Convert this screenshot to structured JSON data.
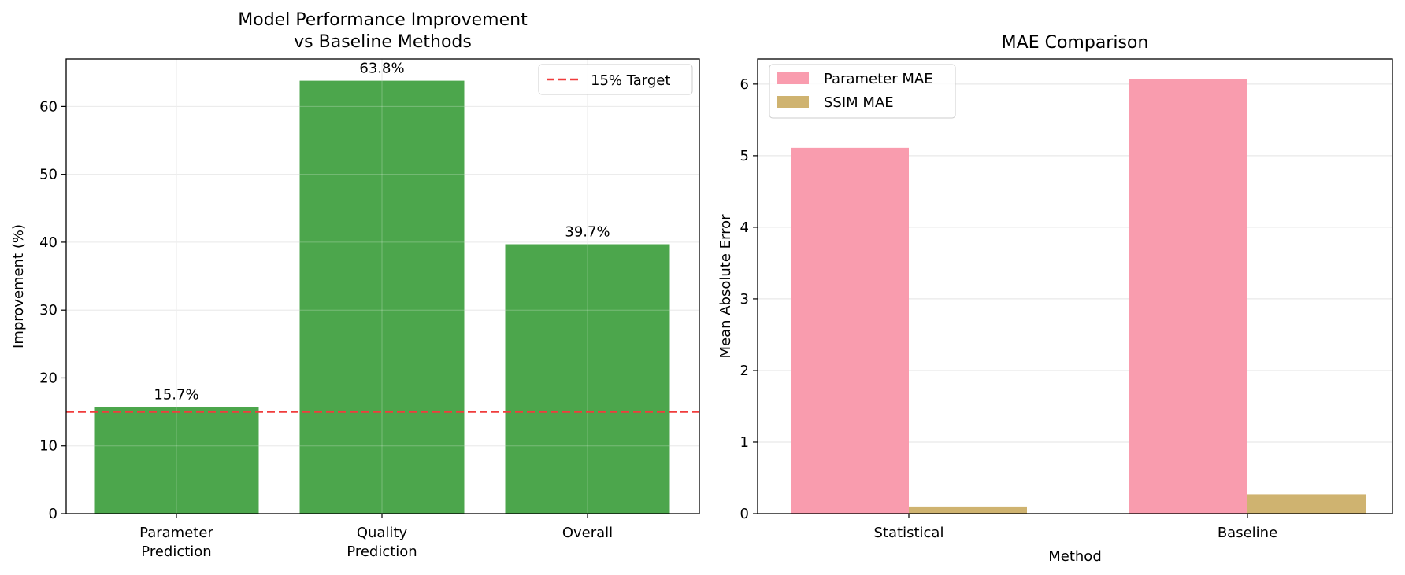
{
  "chart_data": [
    {
      "type": "bar",
      "title_lines": [
        "Model Performance Improvement",
        "vs Baseline Methods"
      ],
      "xlabel": "",
      "ylabel": "Improvement (%)",
      "categories": [
        {
          "lines": [
            "Parameter",
            "Prediction"
          ]
        },
        {
          "lines": [
            "Quality",
            "Prediction"
          ]
        },
        {
          "lines": [
            "Overall"
          ]
        }
      ],
      "values": [
        15.7,
        63.8,
        39.7
      ],
      "data_labels": [
        "15.7%",
        "63.8%",
        "39.7%"
      ],
      "bar_color": "#4ca64c",
      "ylim": [
        0,
        67
      ],
      "yticks": [
        0,
        10,
        20,
        30,
        40,
        50,
        60
      ],
      "target_line": {
        "value": 15,
        "label": "15% Target",
        "color": "#f03c3c"
      },
      "legend_position": "top-right",
      "grid": true
    },
    {
      "type": "bar",
      "title": "MAE Comparison",
      "xlabel": "Method",
      "ylabel": "Mean Absolute Error",
      "categories": [
        "Statistical",
        "Baseline"
      ],
      "series": [
        {
          "name": "Parameter MAE",
          "values": [
            5.11,
            6.07
          ],
          "color": "#f99cae"
        },
        {
          "name": "SSIM MAE",
          "values": [
            0.1,
            0.27
          ],
          "color": "#cfb370"
        }
      ],
      "ylim": [
        0,
        6.35
      ],
      "yticks": [
        0,
        1,
        2,
        3,
        4,
        5,
        6
      ],
      "legend_position": "top-left",
      "grid": true
    }
  ]
}
